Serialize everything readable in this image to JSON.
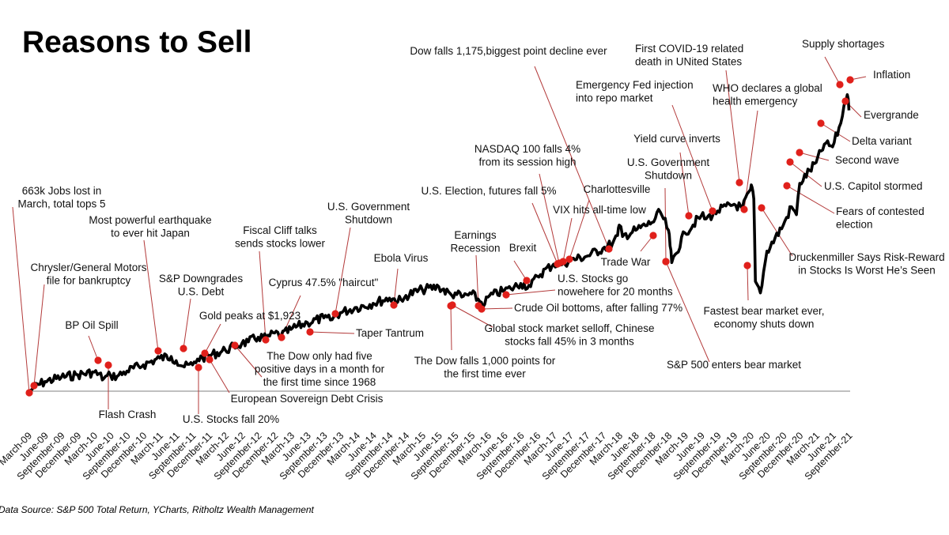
{
  "chart_data": {
    "type": "line",
    "title": "Reasons to Sell",
    "source": "Data Source: S&P 500 Total Return, YCharts, Ritholtz Wealth Management",
    "xlabel": "",
    "ylabel": "",
    "grid": false,
    "legend": "none",
    "ylim": [
      100,
      700
    ],
    "line_color": "#000000",
    "marker_color": "#e0201b",
    "leader_color": "#b33a3a",
    "baseline_color": "#808080",
    "x_ticks": [
      "March-09",
      "June-09",
      "September-09",
      "December-09",
      "March-10",
      "June-10",
      "September-10",
      "December-10",
      "March-11",
      "June-11",
      "September-11",
      "December-11",
      "March-12",
      "June-12",
      "September-12",
      "December-12",
      "March-13",
      "June-13",
      "September-13",
      "December-13",
      "March-14",
      "June-14",
      "September-14",
      "December-14",
      "March-15",
      "June-15",
      "September-15",
      "December-15",
      "March-16",
      "June-16",
      "September-16",
      "December-16",
      "March-17",
      "June-17",
      "September-17",
      "December-17",
      "March-18",
      "June-18",
      "September-18",
      "December-18",
      "March-19",
      "June-19",
      "September-19",
      "December-19",
      "March-20",
      "June-20",
      "September-20",
      "December-20",
      "March-21",
      "June-21",
      "September-21"
    ],
    "series": [
      {
        "name": "S&P 500 Total Return (index)",
        "quarter_index": [
          0,
          0.3,
          1,
          2,
          3,
          4,
          4.6,
          5,
          5.4,
          6,
          7,
          8,
          8.7,
          9,
          9.5,
          10,
          10.3,
          10.6,
          11,
          12,
          13,
          13.4,
          14,
          14.5,
          15,
          15.4,
          16,
          17,
          18,
          18.4,
          19,
          20,
          21,
          22,
          22.8,
          23,
          24,
          25,
          25.8,
          26,
          26.4,
          27,
          27.6,
          27.8,
          28,
          29,
          29.4,
          30,
          30.6,
          31,
          32,
          32.4,
          33,
          34,
          35,
          35.6,
          35.9,
          36,
          36.2,
          37,
          38,
          38.5,
          39,
          39.1,
          39.2,
          40,
          41,
          41.3,
          42,
          43,
          43.5,
          44,
          44.1,
          44.2,
          44.3,
          44.6,
          45,
          46,
          46.5,
          46.8,
          47,
          48,
          48.5,
          49,
          49.5,
          49.7,
          49.9,
          50
        ],
        "values": [
          100,
          108,
          120,
          128,
          133,
          138,
          126,
          132,
          130,
          140,
          152,
          165,
          168,
          160,
          148,
          152,
          163,
          166,
          170,
          180,
          193,
          196,
          205,
          203,
          213,
          208,
          220,
          233,
          242,
          238,
          252,
          262,
          270,
          280,
          274,
          285,
          296,
          302,
          285,
          290,
          282,
          288,
          272,
          268,
          282,
          295,
          298,
          308,
          302,
          322,
          345,
          344,
          352,
          360,
          375,
          385,
          400,
          420,
          398,
          410,
          425,
          445,
          410,
          380,
          348,
          405,
          438,
          432,
          447,
          460,
          452,
          488,
          492,
          470,
          312,
          290,
          370,
          420,
          455,
          440,
          500,
          540,
          575,
          570,
          615,
          650,
          670,
          640,
          680
        ]
      }
    ],
    "annotations": [
      {
        "label": "663k Jobs lost in March, total tops 5",
        "lines": [
          "663k Jobs lost in",
          "March, total tops 5"
        ],
        "q": 0,
        "value": 100
      },
      {
        "label": "Chrysler/General Motors file for bankruptcy",
        "lines": [
          "Chrysler/General Motors",
          "file for bankruptcy"
        ],
        "q": 0.3,
        "value": 108
      },
      {
        "label": "BP Oil Spill",
        "lines": [
          "BP Oil Spill"
        ],
        "q": 4.1,
        "value": 136
      },
      {
        "label": "Flash Crash",
        "lines": [
          "Flash Crash"
        ],
        "q": 4.6,
        "value": 126
      },
      {
        "label": "Most powerful earthquake to ever hit Japan",
        "lines": [
          "Most powerful earthquake",
          "to ever hit Japan"
        ],
        "q": 8,
        "value": 165
      },
      {
        "label": "S&P Downgrades U.S. Debt",
        "lines": [
          "S&P Downgrades",
          "U.S. Debt"
        ],
        "q": 9.5,
        "value": 168
      },
      {
        "label": "U.S. Stocks fall 20%",
        "lines": [
          "U.S. Stocks fall 20%"
        ],
        "q": 10.3,
        "value": 134
      },
      {
        "label": "Gold peaks at $1,923",
        "lines": [
          "Gold peaks at $1,923"
        ],
        "q": 10.6,
        "value": 158
      },
      {
        "label": "European Sovereign Debt Crisis",
        "lines": [
          "European Sovereign Debt Crisis"
        ],
        "q": 11,
        "value": 153
      },
      {
        "label": "The Dow only had five positive days in a month for the first time since 1968",
        "lines": [
          "The Dow only had five",
          "positive days in a month for",
          "the first time since 1968"
        ],
        "q": 12.8,
        "value": 175
      },
      {
        "label": "Fiscal Cliff talks sends stocks lower",
        "lines": [
          "Fiscal Cliff talks",
          "sends stocks lower"
        ],
        "q": 14.4,
        "value": 196
      },
      {
        "label": "Cyprus 47.5% \"haircut\"",
        "lines": [
          "Cyprus 47.5% \"haircut\""
        ],
        "q": 15.4,
        "value": 202
      },
      {
        "label": "Taper Tantrum",
        "lines": [
          "Taper Tantrum"
        ],
        "q": 17.1,
        "value": 212
      },
      {
        "label": "U.S. Government Shutdown",
        "lines": [
          "U.S. Government",
          "Shutdown"
        ],
        "q": 18.7,
        "value": 242
      },
      {
        "label": "Ebola Virus",
        "lines": [
          "Ebola Virus"
        ],
        "q": 22.5,
        "value": 269
      },
      {
        "label": "The Dow falls 1,000 points for the first time ever",
        "lines": [
          "The Dow falls 1,000 points for",
          "the first time ever"
        ],
        "q": 25.7,
        "value": 277
      },
      {
        "label": "Global stock market selloff, Chinese stocks fall 45% in 3 months",
        "lines": [
          "Global stock market selloff, Chinese",
          "stocks fall 45% in 3 months"
        ],
        "q": 25.9,
        "value": 280
      },
      {
        "label": "Earnings Recession",
        "lines": [
          "Earnings",
          "Recession"
        ],
        "q": 27.4,
        "value": 272
      },
      {
        "label": "Crude Oil bottoms, after falling 77%",
        "lines": [
          "Crude Oil bottoms, after falling 77%"
        ],
        "q": 27.8,
        "value": 268
      },
      {
        "label": "Brexit",
        "lines": [
          "Brexit"
        ],
        "q": 29.4,
        "value": 286
      },
      {
        "label": "U.S. Stocks go nowhere for 20 months",
        "lines": [
          "U.S. Stocks go",
          "nowehere for 20 months"
        ],
        "q": 29.4,
        "value": 286
      },
      {
        "label": "U.S. Election, futures fall 5%",
        "lines": [
          "U.S. Election, futures fall 5%"
        ],
        "q": 31.2,
        "value": 305
      },
      {
        "label": "NASDAQ 100 falls 4% from its session high",
        "lines": [
          "NASDAQ 100 falls 4%",
          "from its  session high"
        ],
        "q": 32.5,
        "value": 330
      },
      {
        "label": "VIX hits all-time low",
        "lines": [
          "VIX hits all-time low"
        ],
        "q": 32.9,
        "value": 333
      },
      {
        "label": "Charlottesville",
        "lines": [
          "Charlottesville"
        ],
        "q": 33.6,
        "value": 338
      },
      {
        "label": "Dow falls 1,175,biggest point decline ever",
        "lines": [
          "Dow falls 1,175,biggest point decline ever"
        ],
        "q": 35.9,
        "value": 381
      },
      {
        "label": "Trade War",
        "lines": [
          "Trade War"
        ],
        "q": 38.5,
        "value": 413
      },
      {
        "label": "S&P 500 enters bear market",
        "lines": [
          "S&P 500 enters bear market"
        ],
        "q": 39.2,
        "value": 348
      },
      {
        "label": "U.S. Government Shutdown",
        "lines": [
          "U.S. Government",
          "Shutdown"
        ],
        "q": 39.1,
        "value": 352
      },
      {
        "label": "Yield curve inverts",
        "lines": [
          "Yield curve inverts"
        ],
        "q": 41.3,
        "value": 438
      },
      {
        "label": "Emergency Fed injection into repo market",
        "lines": [
          "Emergency Fed injection",
          "into repo market"
        ],
        "q": 42.7,
        "value": 445
      },
      {
        "label": "First COVID-19 related death in UNited States",
        "lines": [
          "First COVID-19 related",
          "death in UNited States"
        ],
        "q": 44,
        "value": 492
      },
      {
        "label": "WHO declares a global health emergency",
        "lines": [
          "WHO declares a global",
          "health emergency"
        ],
        "q": 44.2,
        "value": 430
      },
      {
        "label": "Fastest bear market ever, economy shuts down",
        "lines": [
          "Fastest bear market ever,",
          "economy shuts down"
        ],
        "q": 44.3,
        "value": 290
      },
      {
        "label": "Druckenmiller Says Risk-Reward in Stocks Is Worst He's Seen",
        "lines": [
          "Druckenmiller Says Risk-Reward",
          "in Stocks Is Worst He’s Seen"
        ],
        "q": 45.3,
        "value": 432
      },
      {
        "label": "Fears of contested election",
        "lines": [
          "Fears of contested",
          "election"
        ],
        "q": 47.2,
        "value": 510
      },
      {
        "label": "U.S. Capitol stormed",
        "lines": [
          "U.S. Capitol stormed"
        ],
        "q": 47.6,
        "value": 545
      },
      {
        "label": "Second wave",
        "lines": [
          "Second wave"
        ],
        "q": 48.1,
        "value": 562
      },
      {
        "label": "Delta variant",
        "lines": [
          "Delta variant"
        ],
        "q": 49.0,
        "value": 598
      },
      {
        "label": "Supply shortages",
        "lines": [
          "Supply shortages"
        ],
        "q": 50.1,
        "value": 660
      },
      {
        "label": "Evergrande",
        "lines": [
          "Evergrande"
        ],
        "q": 50.4,
        "value": 638
      },
      {
        "label": "Inflation",
        "lines": [
          "Inflation"
        ],
        "q": 50.9,
        "value": 675
      }
    ]
  }
}
